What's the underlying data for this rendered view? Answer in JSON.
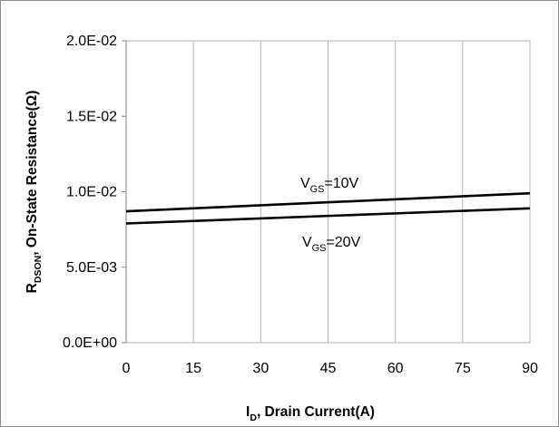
{
  "chart_data": {
    "type": "line",
    "title": "",
    "xlabel": {
      "main": "I",
      "sub": "D",
      "rest": ", Drain Current(A)"
    },
    "ylabel": {
      "main": "R",
      "sub": "DSON",
      "rest": ", On-State Resistance(Ω)"
    },
    "xlim": [
      0,
      90
    ],
    "ylim": [
      0,
      0.02
    ],
    "x_ticks": [
      0,
      15,
      30,
      45,
      60,
      75,
      90
    ],
    "x_tick_labels": [
      "0",
      "15",
      "30",
      "45",
      "60",
      "75",
      "90"
    ],
    "y_ticks": [
      0,
      0.005,
      0.01,
      0.015,
      0.02
    ],
    "y_tick_labels": [
      "0.0E+00",
      "5.0E-03",
      "1.0E-02",
      "1.5E-02",
      "2.0E-02"
    ],
    "grid": "vertical",
    "series": [
      {
        "label": {
          "main": "V",
          "sub": "GS",
          "rest": "=10V"
        },
        "x": [
          0,
          90
        ],
        "y": [
          0.0087,
          0.0099
        ]
      },
      {
        "label": {
          "main": "V",
          "sub": "GS",
          "rest": "=20V"
        },
        "x": [
          0,
          90
        ],
        "y": [
          0.0079,
          0.0089
        ]
      }
    ]
  },
  "colors": {
    "line": "#000000",
    "grid": "#b3b3b3",
    "frame": "#8c8c8c",
    "text": "#000000"
  }
}
